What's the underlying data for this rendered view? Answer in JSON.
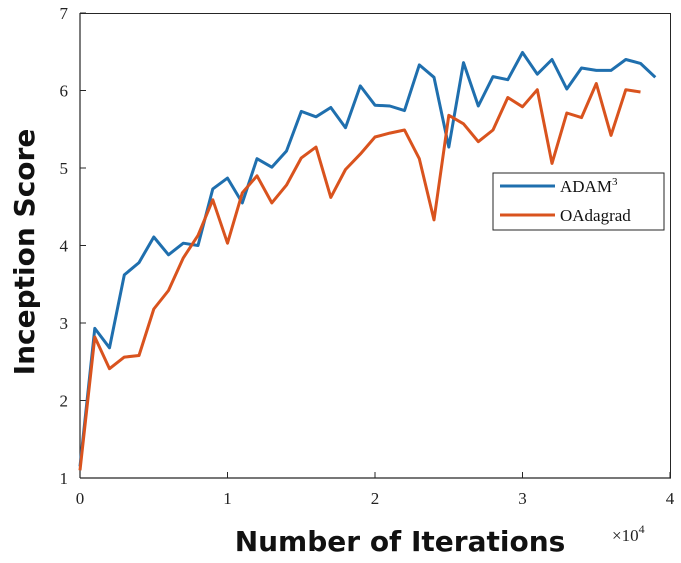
{
  "chart_data": {
    "type": "line",
    "xlabel": "Number of Iterations",
    "ylabel": "Inception Score",
    "x_multiplier": {
      "base": "×10",
      "exponent": "4"
    },
    "xlim": [
      0,
      40000
    ],
    "ylim": [
      1,
      7
    ],
    "xticks": [
      0,
      10000,
      20000,
      30000,
      40000
    ],
    "xtick_labels": [
      "0",
      "1",
      "2",
      "3",
      "4"
    ],
    "yticks": [
      1,
      2,
      3,
      4,
      5,
      6,
      7
    ],
    "ytick_labels": [
      "1",
      "2",
      "3",
      "4",
      "5",
      "6",
      "7"
    ],
    "grid": false,
    "legend_position": "center-right",
    "x": [
      0,
      1000,
      2000,
      3000,
      4000,
      5000,
      6000,
      7000,
      8000,
      9000,
      10000,
      11000,
      12000,
      13000,
      14000,
      15000,
      16000,
      17000,
      18000,
      19000,
      20000,
      21000,
      22000,
      23000,
      24000,
      25000,
      26000,
      27000,
      28000,
      29000,
      30000,
      31000,
      32000,
      33000,
      34000,
      35000,
      36000,
      37000,
      38000,
      39000
    ],
    "series": [
      {
        "name": "ADAM",
        "name_sup": "3",
        "color": "#1f6fae",
        "values": [
          1.15,
          2.93,
          2.68,
          3.62,
          3.78,
          4.11,
          3.88,
          4.03,
          4.0,
          4.73,
          4.87,
          4.55,
          5.12,
          5.01,
          5.22,
          5.73,
          5.66,
          5.78,
          5.52,
          6.06,
          5.81,
          5.8,
          5.74,
          6.33,
          6.17,
          5.27,
          6.36,
          5.8,
          6.18,
          6.14,
          6.49,
          6.21,
          6.4,
          6.02,
          6.29,
          6.26,
          6.26,
          6.4,
          6.35,
          6.17
        ]
      },
      {
        "name": "OAdagrad",
        "color": "#d9531e",
        "values": [
          1.1,
          2.82,
          2.41,
          2.56,
          2.58,
          3.18,
          3.42,
          3.84,
          4.13,
          4.59,
          4.03,
          4.68,
          4.9,
          4.55,
          4.78,
          5.13,
          5.27,
          4.62,
          4.98,
          5.18,
          5.4,
          5.45,
          5.49,
          5.12,
          4.33,
          5.68,
          5.57,
          5.34,
          5.49,
          5.91,
          5.79,
          6.01,
          5.06,
          5.71,
          5.65,
          6.09,
          5.42,
          6.01,
          5.98,
          null
        ]
      }
    ]
  }
}
